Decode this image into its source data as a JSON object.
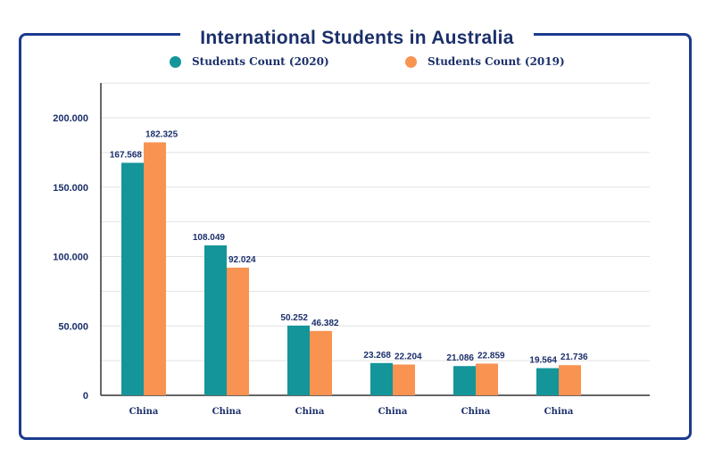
{
  "chart_data": {
    "type": "bar",
    "title": "International Students in Australia",
    "categories": [
      "China",
      "China",
      "China",
      "China",
      "China",
      "China"
    ],
    "series": [
      {
        "name": "Students Count (2020)",
        "values": [
          167568,
          108049,
          50252,
          23268,
          21086,
          19564
        ],
        "labels": [
          "167.568",
          "108.049",
          "50.252",
          "23.268",
          "21.086",
          "19.564"
        ],
        "color": "#14959a"
      },
      {
        "name": "Students Count (2019)",
        "values": [
          182325,
          92024,
          46382,
          22204,
          22859,
          21736
        ],
        "labels": [
          "182.325",
          "92.024",
          "46.382",
          "22.204",
          "22.859",
          "21.736"
        ],
        "color": "#f99352"
      }
    ],
    "yticks": [
      0,
      50000,
      100000,
      150000,
      200000
    ],
    "ytick_labels": [
      "0",
      "50.000",
      "100.000",
      "150.000",
      "200.000"
    ],
    "ylim": [
      0,
      225000
    ],
    "grid": true,
    "legend": "top-center",
    "xlabel": "",
    "ylabel": ""
  },
  "colors": {
    "frame": "#1b3b8f",
    "text": "#1b2f6b",
    "grid": "#e2e2e2"
  }
}
